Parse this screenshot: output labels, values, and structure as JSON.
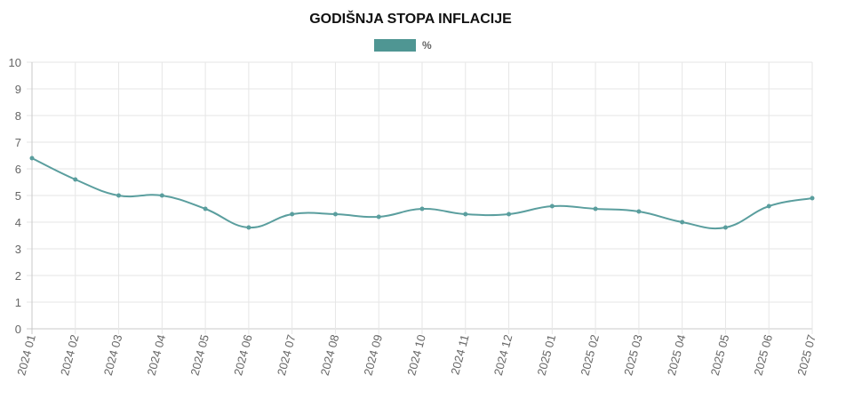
{
  "chart_data": {
    "type": "line",
    "title": "GODIŠNJA STOPA INFLACIJE",
    "xlabel": "",
    "ylabel": "",
    "categories": [
      "2024 01",
      "2024 02",
      "2024 03",
      "2024 04",
      "2024 05",
      "2024 06",
      "2024 07",
      "2024 08",
      "2024 09",
      "2024 10",
      "2024 11",
      "2024 12",
      "2025 01",
      "2025 02",
      "2025 03",
      "2025 04",
      "2025 05",
      "2025 06",
      "2025 07"
    ],
    "series": [
      {
        "name": "%",
        "values": [
          6.4,
          5.6,
          5.0,
          5.0,
          4.5,
          3.8,
          4.3,
          4.3,
          4.2,
          4.5,
          4.3,
          4.3,
          4.6,
          4.5,
          4.4,
          4.0,
          3.8,
          4.6,
          4.9
        ]
      }
    ],
    "ylim": [
      0,
      10
    ],
    "yticks": [
      0,
      1,
      2,
      3,
      4,
      5,
      6,
      7,
      8,
      9,
      10
    ],
    "grid": true,
    "legend_position": "top-center",
    "colors": {
      "line": "#5a9e9e",
      "legend_fill": "#4f9693"
    }
  }
}
